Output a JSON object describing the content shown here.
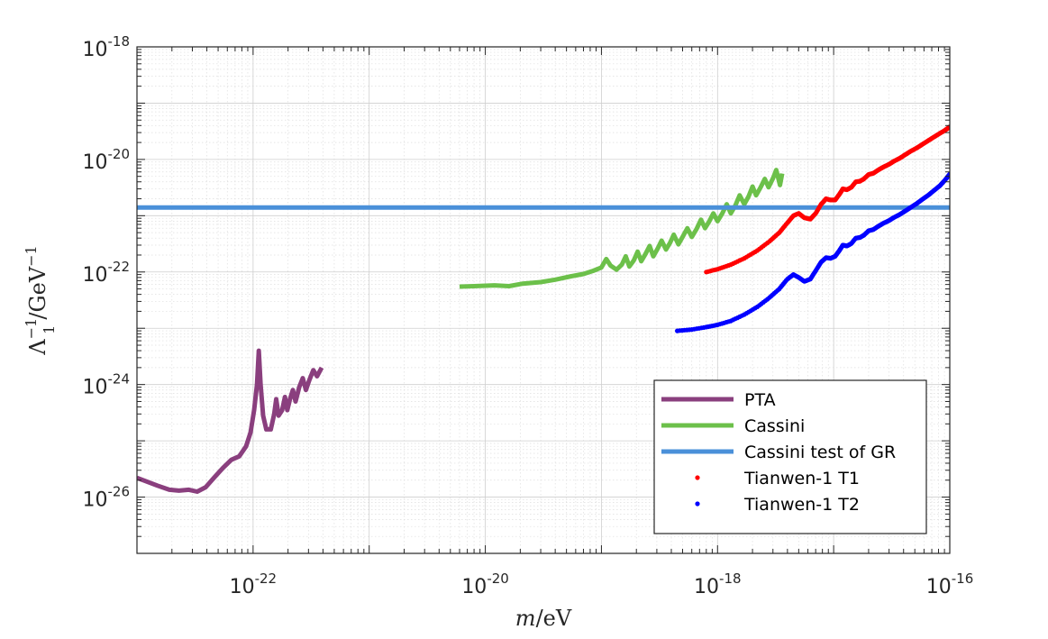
{
  "chart_data": {
    "type": "line",
    "title": "",
    "xlabel": {
      "italic": "m",
      "unit": "/eV"
    },
    "ylabel": {
      "base": "Λ",
      "sup": "−1",
      "sub": "1",
      "unit": "/GeV",
      "unit_sup": "−1"
    },
    "x_scale": "log",
    "y_scale": "log",
    "xlim": [
      1e-23,
      1e-16
    ],
    "ylim": [
      1e-27,
      1e-18
    ],
    "grid": true,
    "minor_grid": true,
    "legend_position": "bottom-right",
    "x_ticks": [
      {
        "value": 1e-22,
        "base": "10",
        "exp": "-22"
      },
      {
        "value": 1e-20,
        "base": "10",
        "exp": "-20"
      },
      {
        "value": 1e-18,
        "base": "10",
        "exp": "-18"
      },
      {
        "value": 1e-16,
        "base": "10",
        "exp": "-16"
      }
    ],
    "y_ticks": [
      {
        "value": 1e-18,
        "base": "10",
        "exp": "-18"
      },
      {
        "value": 1e-20,
        "base": "10",
        "exp": "-20"
      },
      {
        "value": 1e-22,
        "base": "10",
        "exp": "-22"
      },
      {
        "value": 1e-24,
        "base": "10",
        "exp": "-24"
      },
      {
        "value": 1e-26,
        "base": "10",
        "exp": "-26"
      }
    ],
    "series": [
      {
        "name": "PTA",
        "style": "line",
        "color": "#8a3f7e",
        "width": 5,
        "points": [
          [
            1e-23,
            2.2e-26
          ],
          [
            1.2e-23,
            1.9e-26
          ],
          [
            1.5e-23,
            1.6e-26
          ],
          [
            1.9e-23,
            1.35e-26
          ],
          [
            2.3e-23,
            1.3e-26
          ],
          [
            2.8e-23,
            1.35e-26
          ],
          [
            3.3e-23,
            1.25e-26
          ],
          [
            3.9e-23,
            1.5e-26
          ],
          [
            4.6e-23,
            2.2e-26
          ],
          [
            5.5e-23,
            3.3e-26
          ],
          [
            6.5e-23,
            4.6e-26
          ],
          [
            7.6e-23,
            5.3e-26
          ],
          [
            8.7e-23,
            8e-26
          ],
          [
            9.5e-23,
            1.4e-25
          ],
          [
            1.02e-22,
            3.5e-25
          ],
          [
            1.08e-22,
            1e-24
          ],
          [
            1.12e-22,
            4e-24
          ],
          [
            1.16e-22,
            1e-24
          ],
          [
            1.22e-22,
            2.8e-25
          ],
          [
            1.3e-22,
            1.6e-25
          ],
          [
            1.42e-22,
            1.6e-25
          ],
          [
            1.52e-22,
            3e-25
          ],
          [
            1.58e-22,
            5.5e-25
          ],
          [
            1.66e-22,
            2.8e-25
          ],
          [
            1.78e-22,
            3.5e-25
          ],
          [
            1.88e-22,
            6e-25
          ],
          [
            1.97e-22,
            3.5e-25
          ],
          [
            2.08e-22,
            5.5e-25
          ],
          [
            2.2e-22,
            8e-25
          ],
          [
            2.32e-22,
            5e-25
          ],
          [
            2.5e-22,
            9e-25
          ],
          [
            2.68e-22,
            1.3e-24
          ],
          [
            2.85e-22,
            8e-25
          ],
          [
            3.05e-22,
            1.2e-24
          ],
          [
            3.3e-22,
            1.8e-24
          ],
          [
            3.55e-22,
            1.4e-24
          ],
          [
            3.9e-22,
            2e-24
          ]
        ]
      },
      {
        "name": "Cassini",
        "style": "line",
        "color": "#6cc04a",
        "width": 5,
        "points": [
          [
            6e-21,
            5.5e-23
          ],
          [
            8e-21,
            5.6e-23
          ],
          [
            1.2e-20,
            5.8e-23
          ],
          [
            1.6e-20,
            5.6e-23
          ],
          [
            2.1e-20,
            6.2e-23
          ],
          [
            3e-20,
            6.6e-23
          ],
          [
            4e-20,
            7.3e-23
          ],
          [
            5.5e-20,
            8.4e-23
          ],
          [
            7e-20,
            9.2e-23
          ],
          [
            8.5e-20,
            1.05e-22
          ],
          [
            1e-19,
            1.2e-22
          ],
          [
            1.1e-19,
            1.7e-22
          ],
          [
            1.2e-19,
            1.3e-22
          ],
          [
            1.35e-19,
            1.1e-22
          ],
          [
            1.5e-19,
            1.35e-22
          ],
          [
            1.62e-19,
            1.9e-22
          ],
          [
            1.74e-19,
            1.25e-22
          ],
          [
            1.9e-19,
            1.6e-22
          ],
          [
            2.05e-19,
            2.3e-22
          ],
          [
            2.2e-19,
            1.55e-22
          ],
          [
            2.4e-19,
            2.1e-22
          ],
          [
            2.6e-19,
            2.9e-22
          ],
          [
            2.8e-19,
            1.9e-22
          ],
          [
            3.05e-19,
            2.6e-22
          ],
          [
            3.3e-19,
            3.6e-22
          ],
          [
            3.6e-19,
            2.5e-22
          ],
          [
            3.9e-19,
            3.3e-22
          ],
          [
            4.2e-19,
            4.6e-22
          ],
          [
            4.6e-19,
            3.1e-22
          ],
          [
            5e-19,
            4.2e-22
          ],
          [
            5.5e-19,
            6e-22
          ],
          [
            6e-19,
            4.2e-22
          ],
          [
            6.6e-19,
            5.8e-22
          ],
          [
            7.2e-19,
            8.5e-22
          ],
          [
            7.8e-19,
            6e-22
          ],
          [
            8.5e-19,
            8e-22
          ],
          [
            9.2e-19,
            1.1e-21
          ],
          [
            1e-18,
            8e-22
          ],
          [
            1.1e-18,
            1.1e-21
          ],
          [
            1.2e-18,
            1.6e-21
          ],
          [
            1.3e-18,
            1.1e-21
          ],
          [
            1.42e-18,
            1.5e-21
          ],
          [
            1.55e-18,
            2.3e-21
          ],
          [
            1.7e-18,
            1.6e-21
          ],
          [
            1.85e-18,
            2.2e-21
          ],
          [
            2e-18,
            3.3e-21
          ],
          [
            2.15e-18,
            2.3e-21
          ],
          [
            2.35e-18,
            3.2e-21
          ],
          [
            2.55e-18,
            4.5e-21
          ],
          [
            2.75e-18,
            3.2e-21
          ],
          [
            3e-18,
            4.6e-21
          ],
          [
            3.2e-18,
            6.5e-21
          ],
          [
            3.45e-18,
            3.5e-21
          ],
          [
            3.6e-18,
            5.6e-21
          ]
        ]
      },
      {
        "name": "Cassini test of GR",
        "style": "line",
        "color": "#4a90d9",
        "width": 5,
        "points": [
          [
            1e-23,
            1.4e-21
          ],
          [
            1e-16,
            1.4e-21
          ]
        ]
      },
      {
        "name": "Tianwen-1 T1",
        "style": "dots",
        "color": "#ff0000",
        "width": 5,
        "points": [
          [
            8e-19,
            1e-22
          ],
          [
            1e-18,
            1.12e-22
          ],
          [
            1.3e-18,
            1.35e-22
          ],
          [
            1.7e-18,
            1.75e-22
          ],
          [
            2.2e-18,
            2.4e-22
          ],
          [
            2.8e-18,
            3.5e-22
          ],
          [
            3.4e-18,
            5e-22
          ],
          [
            4e-18,
            7.5e-22
          ],
          [
            4.5e-18,
            1e-21
          ],
          [
            5e-18,
            1.1e-21
          ],
          [
            5.6e-18,
            9.2e-22
          ],
          [
            6.3e-18,
            8.7e-22
          ],
          [
            7e-18,
            1.1e-21
          ],
          [
            7.8e-18,
            1.6e-21
          ],
          [
            8.6e-18,
            2e-21
          ],
          [
            9.4e-18,
            1.9e-21
          ],
          [
            1.03e-17,
            1.9e-21
          ],
          [
            1.12e-17,
            2.4e-21
          ],
          [
            1.2e-17,
            3e-21
          ],
          [
            1.3e-17,
            2.9e-21
          ],
          [
            1.42e-17,
            3.2e-21
          ],
          [
            1.55e-17,
            4e-21
          ],
          [
            1.68e-17,
            4.1e-21
          ],
          [
            1.82e-17,
            4.5e-21
          ],
          [
            2e-17,
            5.4e-21
          ],
          [
            2.2e-17,
            5.7e-21
          ],
          [
            2.45e-17,
            6.6e-21
          ],
          [
            2.7e-17,
            7.4e-21
          ],
          [
            3e-17,
            8.2e-21
          ],
          [
            3.3e-17,
            9.3e-21
          ],
          [
            3.7e-17,
            1.05e-20
          ],
          [
            4.1e-17,
            1.2e-20
          ],
          [
            4.6e-17,
            1.4e-20
          ],
          [
            5.2e-17,
            1.6e-20
          ],
          [
            5.8e-17,
            1.85e-20
          ],
          [
            6.5e-17,
            2.15e-20
          ],
          [
            7.3e-17,
            2.5e-20
          ],
          [
            8.2e-17,
            2.9e-20
          ],
          [
            9.1e-17,
            3.3e-20
          ],
          [
            1e-16,
            3.8e-20
          ]
        ]
      },
      {
        "name": "Tianwen-1 T2",
        "style": "dots",
        "color": "#0000ff",
        "width": 5,
        "points": [
          [
            4.5e-19,
            9e-24
          ],
          [
            6e-19,
            9.5e-24
          ],
          [
            8e-19,
            1.05e-23
          ],
          [
            1e-18,
            1.15e-23
          ],
          [
            1.3e-18,
            1.35e-23
          ],
          [
            1.7e-18,
            1.75e-23
          ],
          [
            2.2e-18,
            2.4e-23
          ],
          [
            2.8e-18,
            3.5e-23
          ],
          [
            3.4e-18,
            5e-23
          ],
          [
            4e-18,
            7.5e-23
          ],
          [
            4.5e-18,
            9e-23
          ],
          [
            5e-18,
            8e-23
          ],
          [
            5.6e-18,
            6.8e-23
          ],
          [
            6.3e-18,
            7.5e-23
          ],
          [
            7e-18,
            1.05e-22
          ],
          [
            7.8e-18,
            1.5e-22
          ],
          [
            8.6e-18,
            1.8e-22
          ],
          [
            9.4e-18,
            1.75e-22
          ],
          [
            1.03e-17,
            1.9e-22
          ],
          [
            1.12e-17,
            2.4e-22
          ],
          [
            1.2e-17,
            3e-22
          ],
          [
            1.3e-17,
            2.9e-22
          ],
          [
            1.42e-17,
            3.2e-22
          ],
          [
            1.55e-17,
            4e-22
          ],
          [
            1.68e-17,
            4.1e-22
          ],
          [
            1.82e-17,
            4.5e-22
          ],
          [
            2e-17,
            5.4e-22
          ],
          [
            2.2e-17,
            5.7e-22
          ],
          [
            2.45e-17,
            6.6e-22
          ],
          [
            2.7e-17,
            7.4e-22
          ],
          [
            3e-17,
            8.2e-22
          ],
          [
            3.3e-17,
            9.3e-22
          ],
          [
            3.7e-17,
            1.05e-21
          ],
          [
            4.1e-17,
            1.2e-21
          ],
          [
            4.6e-17,
            1.4e-21
          ],
          [
            5.2e-17,
            1.65e-21
          ],
          [
            5.8e-17,
            1.95e-21
          ],
          [
            6.5e-17,
            2.3e-21
          ],
          [
            7.3e-17,
            2.8e-21
          ],
          [
            8.2e-17,
            3.4e-21
          ],
          [
            9.1e-17,
            4.3e-21
          ],
          [
            1e-16,
            5.5e-21
          ]
        ]
      }
    ]
  }
}
